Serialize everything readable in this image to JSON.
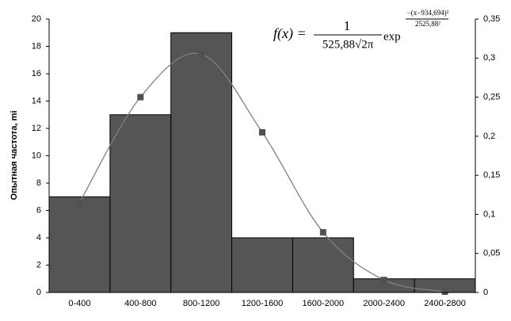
{
  "chart_data": {
    "type": "bar",
    "y_label": "Опытная частота, mi",
    "categories": [
      "0-400",
      "400-800",
      "800-1200",
      "1200-1600",
      "1600-2000",
      "2000-2400",
      "2400-2800"
    ],
    "series": [
      {
        "kind": "bar",
        "color": "#555555",
        "values": [
          7,
          13,
          19,
          4,
          4,
          1,
          1
        ]
      },
      {
        "kind": "line",
        "axis": "y2",
        "color": "#808080",
        "marker_color": "#505050",
        "values": [
          0.115,
          0.25,
          0.305,
          0.205,
          0.077,
          0.016,
          0.001
        ]
      }
    ],
    "ylim": [
      0,
      20
    ],
    "yticks": [
      0,
      2,
      4,
      6,
      8,
      10,
      12,
      14,
      16,
      18,
      20
    ],
    "y2lim": [
      0,
      0.35
    ],
    "y2ticks": [
      0,
      {
        "value": 0.05,
        "label": "0,05"
      },
      {
        "value": 0.1,
        "label": "0,1"
      },
      {
        "value": 0.15,
        "label": "0,15"
      },
      {
        "value": 0.2,
        "label": "0,2"
      },
      {
        "value": 0.25,
        "label": "0,25"
      },
      {
        "value": 0.3,
        "label": "0,3"
      },
      {
        "value": 0.35,
        "label": "0,35"
      }
    ],
    "formula": {
      "lhs": "f(x) =",
      "num": "1",
      "den": "525,88√2π",
      "exp": "exp",
      "exp_num": "−(x−934,694)²",
      "exp_den": "2525,88²"
    }
  }
}
